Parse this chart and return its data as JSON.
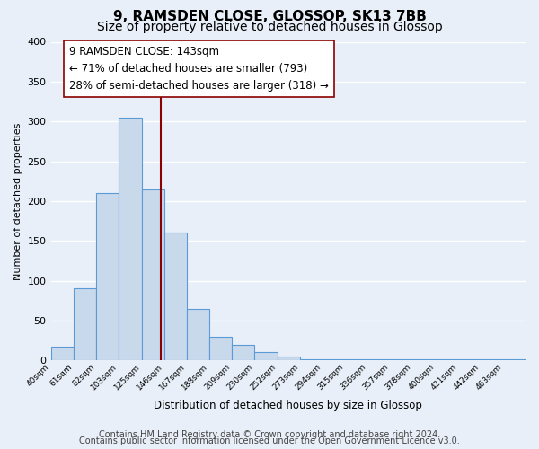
{
  "title": "9, RAMSDEN CLOSE, GLOSSOP, SK13 7BB",
  "subtitle": "Size of property relative to detached houses in Glossop",
  "xlabel": "Distribution of detached houses by size in Glossop",
  "ylabel": "Number of detached properties",
  "bar_edges": [
    40,
    61,
    82,
    103,
    125,
    146,
    167,
    188,
    209,
    230,
    252,
    273,
    294,
    315,
    336,
    357,
    378,
    400,
    421,
    442,
    463,
    484
  ],
  "bar_heights": [
    17,
    90,
    210,
    305,
    215,
    160,
    65,
    30,
    20,
    10,
    5,
    2,
    2,
    2,
    2,
    2,
    2,
    2,
    2,
    2,
    2
  ],
  "bar_face_color": "#c9d9ec",
  "bar_edge_color": "#5b9bd5",
  "vline_x": 143,
  "vline_color": "#8b0000",
  "annotation_text": "9 RAMSDEN CLOSE: 143sqm\n← 71% of detached houses are smaller (793)\n28% of semi-detached houses are larger (318) →",
  "annotation_box_edgecolor": "#8b0000",
  "annotation_box_facecolor": "#ffffff",
  "ylim": [
    0,
    400
  ],
  "xlim": [
    40,
    484
  ],
  "tick_labels": [
    "40sqm",
    "61sqm",
    "82sqm",
    "103sqm",
    "125sqm",
    "146sqm",
    "167sqm",
    "188sqm",
    "209sqm",
    "230sqm",
    "252sqm",
    "273sqm",
    "294sqm",
    "315sqm",
    "336sqm",
    "357sqm",
    "378sqm",
    "400sqm",
    "421sqm",
    "442sqm",
    "463sqm"
  ],
  "tick_positions": [
    40,
    61,
    82,
    103,
    125,
    146,
    167,
    188,
    209,
    230,
    252,
    273,
    294,
    315,
    336,
    357,
    378,
    400,
    421,
    442,
    463
  ],
  "ytick_positions": [
    0,
    50,
    100,
    150,
    200,
    250,
    300,
    350,
    400
  ],
  "ytick_labels": [
    "0",
    "50",
    "100",
    "150",
    "200",
    "250",
    "300",
    "350",
    "400"
  ],
  "footer_line1": "Contains HM Land Registry data © Crown copyright and database right 2024.",
  "footer_line2": "Contains public sector information licensed under the Open Government Licence v3.0.",
  "bg_color": "#e8eff8",
  "grid_color": "#ffffff",
  "title_fontsize": 11,
  "subtitle_fontsize": 10,
  "annot_fontsize": 8.5,
  "footer_fontsize": 7
}
